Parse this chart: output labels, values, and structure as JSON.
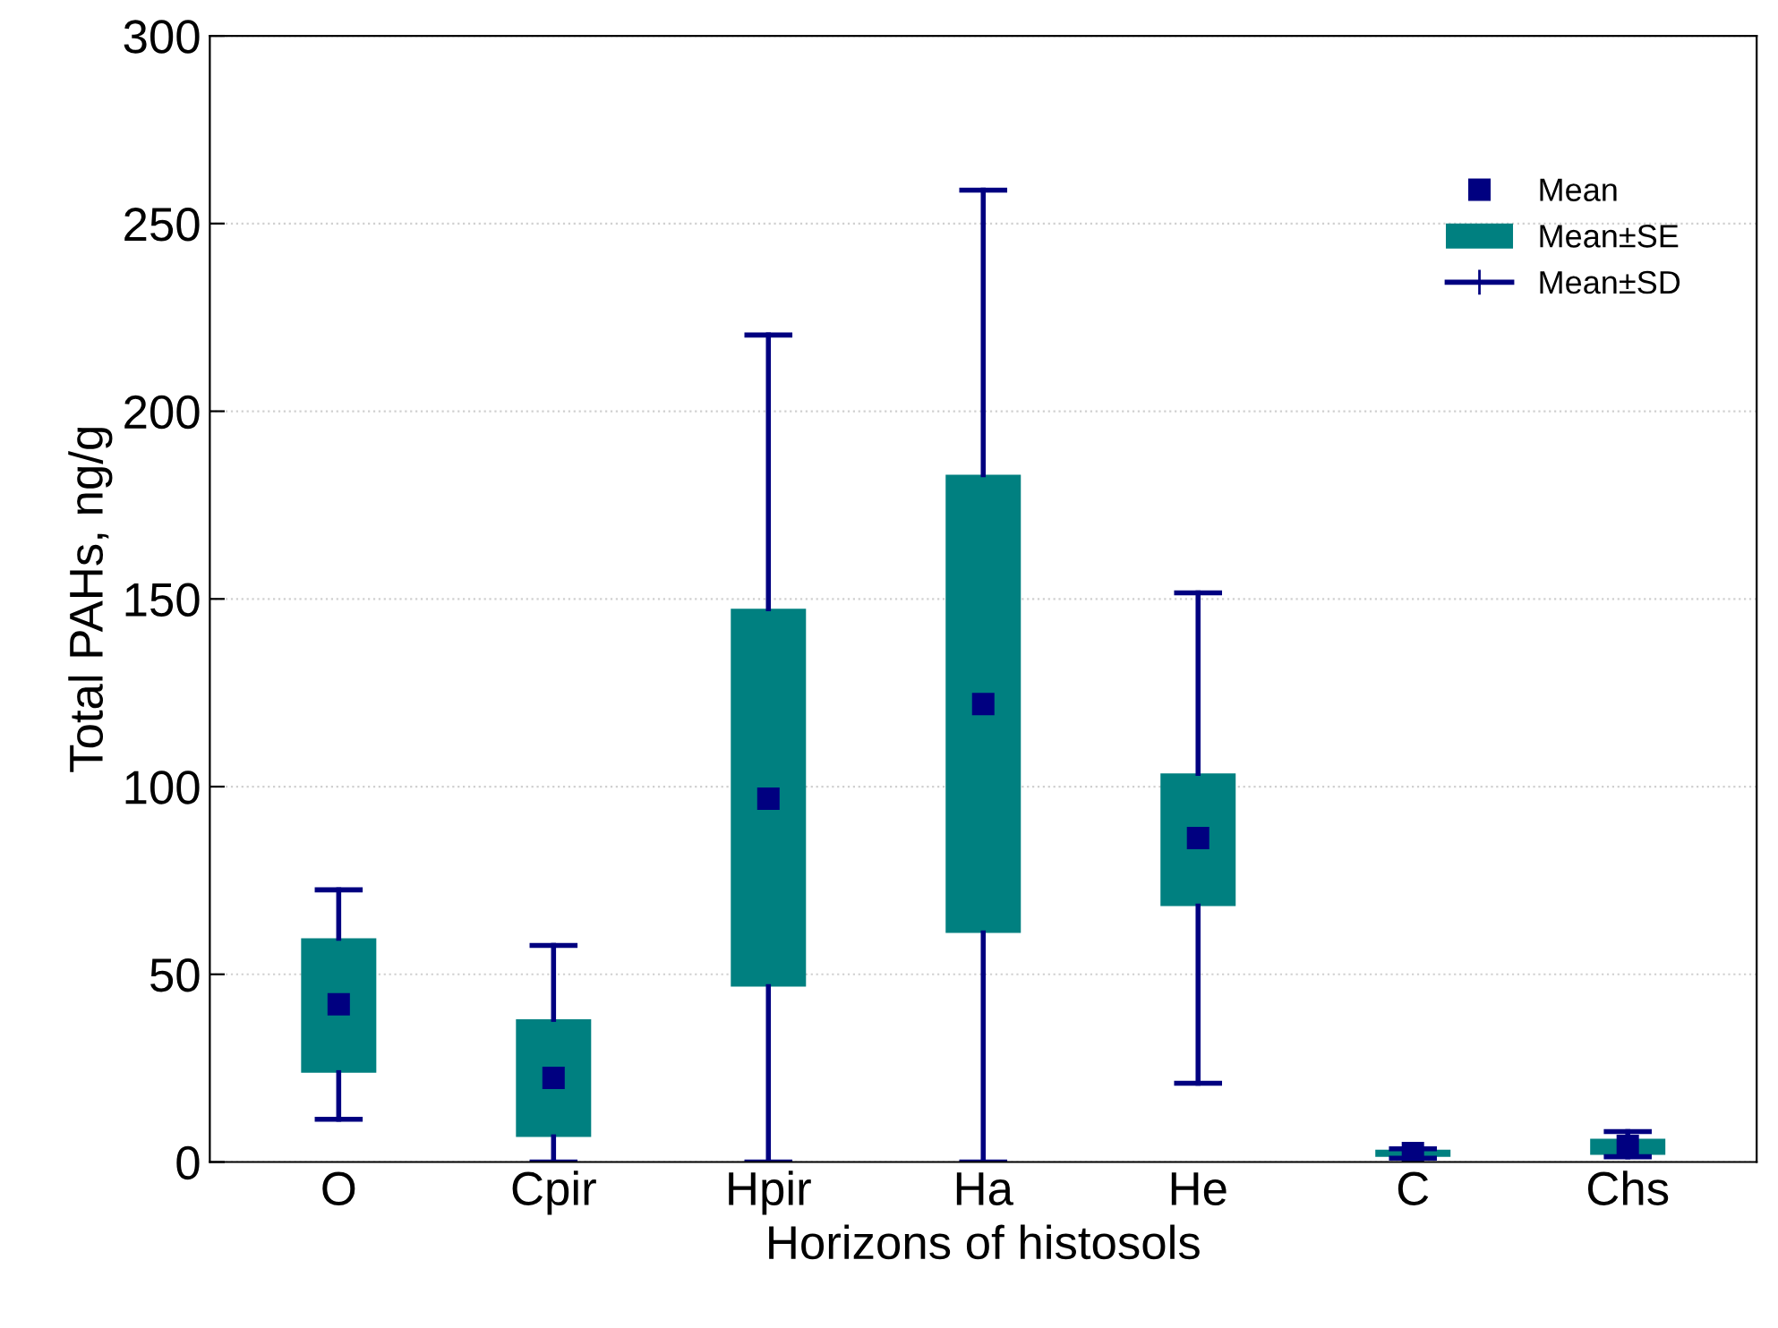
{
  "chart_data": {
    "type": "box",
    "xlabel": "Horizons of histosols",
    "ylabel": "Total PAHs, ng/g",
    "categories": [
      "O",
      "Cpir",
      "Hpir",
      "Ha",
      "He",
      "C",
      "Chs"
    ],
    "series": [
      {
        "color": "#008080",
        "boxes": [
          {
            "low": 11.4,
            "q1": 23.8,
            "q3": 59.6,
            "high": 72.5,
            "mean": 42
          },
          {
            "low": 0,
            "q1": 6.7,
            "q3": 38,
            "high": 57.7,
            "mean": 22.4
          },
          {
            "low": 0,
            "q1": 46.7,
            "q3": 147.4,
            "high": 220.3,
            "mean": 96.8
          },
          {
            "low": 0,
            "q1": 61,
            "q3": 183.1,
            "high": 258.9,
            "mean": 122
          },
          {
            "low": 21,
            "q1": 68.2,
            "q3": 103.5,
            "high": 151.6,
            "mean": 86.3
          },
          {
            "low": 1,
            "q1": 1.4,
            "q3": 3.3,
            "high": 3.5,
            "mean": 2.4
          },
          {
            "low": 1.4,
            "q1": 1.9,
            "q3": 6.2,
            "high": 8.1,
            "mean": 4.3
          }
        ]
      }
    ],
    "color": "#000080",
    "annotations": [
      "Mean",
      "Mean±SE",
      "Mean±SD"
    ],
    "ylim": [
      0,
      300
    ],
    "yticks": [
      0,
      50,
      100,
      150,
      200,
      250,
      300
    ],
    "grid": "y",
    "marker": "square"
  }
}
